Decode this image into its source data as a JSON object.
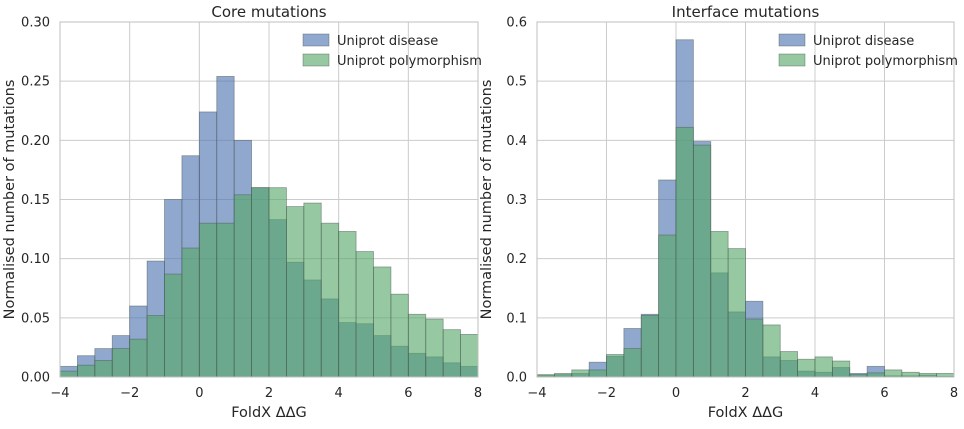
{
  "chart_data": [
    {
      "type": "histogram",
      "title": "Core mutations",
      "xlabel": "FoldX ΔΔG",
      "ylabel": "Normalised number of mutations",
      "xlim": [
        -4,
        8
      ],
      "ylim": [
        0,
        0.3
      ],
      "xticks": [
        "−4",
        "−2",
        "0",
        "2",
        "4",
        "6",
        "8"
      ],
      "yticks": [
        "0.00",
        "0.05",
        "0.10",
        "0.15",
        "0.20",
        "0.25",
        "0.30"
      ],
      "grid": true,
      "legend_position": "top-right",
      "bin_width": 0.5,
      "bin_starts": [
        -4,
        -3.5,
        -3,
        -2.5,
        -2,
        -1.5,
        -1,
        -0.5,
        0,
        0.5,
        1,
        1.5,
        2,
        2.5,
        3,
        3.5,
        4,
        4.5,
        5,
        5.5,
        6,
        6.5,
        7,
        7.5
      ],
      "series": [
        {
          "name": "Uniprot disease",
          "color": "#4c72b0",
          "values": [
            0.009,
            0.018,
            0.024,
            0.035,
            0.06,
            0.098,
            0.15,
            0.187,
            0.224,
            0.254,
            0.2,
            0.16,
            0.133,
            0.097,
            0.082,
            0.066,
            0.046,
            0.045,
            0.035,
            0.026,
            0.02,
            0.017,
            0.012,
            0.009
          ]
        },
        {
          "name": "Uniprot polymorphism",
          "color": "#55a868",
          "values": [
            0.005,
            0.01,
            0.014,
            0.024,
            0.032,
            0.052,
            0.087,
            0.109,
            0.13,
            0.13,
            0.154,
            0.16,
            0.16,
            0.144,
            0.147,
            0.13,
            0.123,
            0.106,
            0.093,
            0.07,
            0.053,
            0.049,
            0.04,
            0.036
          ]
        }
      ]
    },
    {
      "type": "histogram",
      "title": "Interface mutations",
      "xlabel": "FoldX ΔΔG",
      "ylabel": "Normalised number of mutations",
      "xlim": [
        -4,
        8
      ],
      "ylim": [
        0,
        0.6
      ],
      "xticks": [
        "−4",
        "−2",
        "0",
        "2",
        "4",
        "6",
        "8"
      ],
      "yticks": [
        "0.0",
        "0.1",
        "0.2",
        "0.3",
        "0.4",
        "0.5",
        "0.6"
      ],
      "grid": true,
      "legend_position": "top-right",
      "bin_width": 0.5,
      "bin_starts": [
        -4,
        -3.5,
        -3,
        -2.5,
        -2,
        -1.5,
        -1,
        -0.5,
        0,
        0.5,
        1,
        1.5,
        2,
        2.5,
        3,
        3.5,
        4,
        4.5,
        5,
        5.5,
        6,
        6.5,
        7,
        7.5
      ],
      "series": [
        {
          "name": "Uniprot disease",
          "color": "#4c72b0",
          "values": [
            0.003,
            0.004,
            0.006,
            0.025,
            0.035,
            0.082,
            0.106,
            0.333,
            0.57,
            0.398,
            0.176,
            0.11,
            0.128,
            0.034,
            0.028,
            0.01,
            0.008,
            0.016,
            0.006,
            0.018,
            0.002,
            0.002,
            0.003,
            0.001
          ]
        },
        {
          "name": "Uniprot polymorphism",
          "color": "#55a868",
          "values": [
            0.004,
            0.006,
            0.012,
            0.012,
            0.038,
            0.048,
            0.104,
            0.24,
            0.422,
            0.392,
            0.246,
            0.217,
            0.098,
            0.088,
            0.043,
            0.03,
            0.034,
            0.027,
            0.004,
            0.007,
            0.012,
            0.008,
            0.006,
            0.006
          ]
        }
      ]
    }
  ]
}
